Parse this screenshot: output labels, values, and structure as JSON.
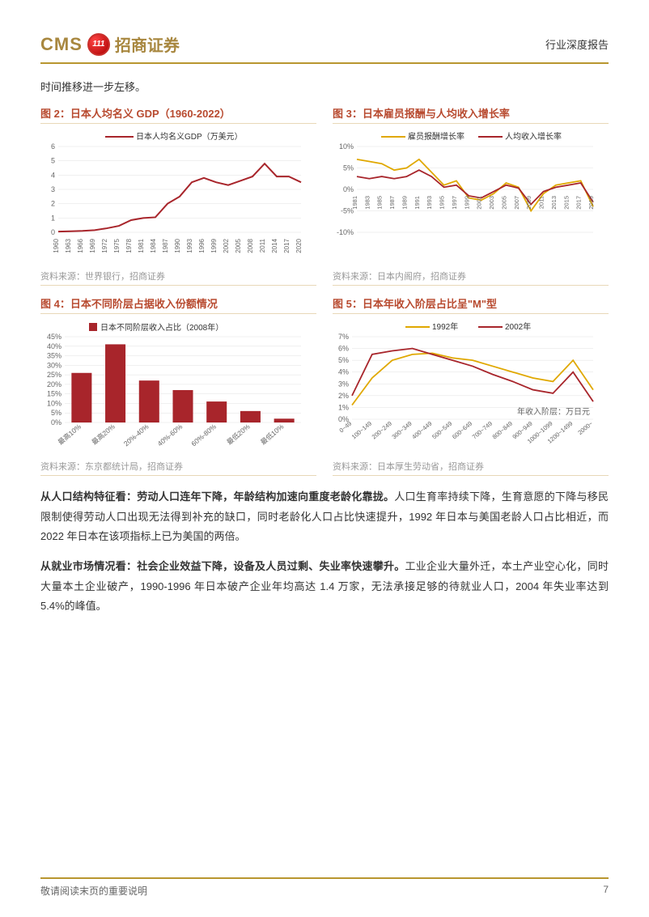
{
  "header": {
    "logo_cms": "CMS",
    "logo_badge": "111",
    "logo_cn": "招商证券",
    "report_type": "行业深度报告"
  },
  "intro": "时间推移进一步左移。",
  "chart2": {
    "title": "图 2：日本人均名义 GDP（1960-2022）",
    "legend": "日本人均名义GDP（万美元）",
    "source": "资料来源：世界银行，招商证券",
    "color": "#a8252b",
    "ylim": [
      0,
      6
    ],
    "ytick": 1,
    "xticks": [
      "1960",
      "1963",
      "1966",
      "1969",
      "1972",
      "1975",
      "1978",
      "1981",
      "1984",
      "1987",
      "1990",
      "1993",
      "1996",
      "1999",
      "2002",
      "2005",
      "2008",
      "2011",
      "2014",
      "2017",
      "2020"
    ],
    "values": [
      0.05,
      0.07,
      0.1,
      0.15,
      0.28,
      0.45,
      0.85,
      1.0,
      1.05,
      2.0,
      2.5,
      3.5,
      3.8,
      3.5,
      3.3,
      3.6,
      3.9,
      4.8,
      3.9,
      3.9,
      3.5
    ],
    "grid_color": "#e0e0e0"
  },
  "chart3": {
    "title": "图 3：日本雇员报酬与人均收入增长率",
    "legend1": "雇员报酬增长率",
    "legend2": "人均收入增长率",
    "color1": "#e0a800",
    "color2": "#a8252b",
    "source": "资料来源：日本内阁府，招商证券",
    "ylim": [
      -10,
      10
    ],
    "ytick": 5,
    "xticks": [
      "1981",
      "1983",
      "1985",
      "1987",
      "1989",
      "1991",
      "1993",
      "1995",
      "1997",
      "1999",
      "2001",
      "2003",
      "2005",
      "2007",
      "2009",
      "2011",
      "2013",
      "2015",
      "2017",
      "2019"
    ],
    "values1": [
      7,
      6.5,
      6,
      4.5,
      5,
      7,
      4,
      1,
      2,
      -2,
      -2.5,
      -1,
      1.5,
      0.5,
      -5,
      -1,
      1,
      1.5,
      2,
      -4
    ],
    "values2": [
      3,
      2.5,
      3,
      2.5,
      3,
      4.5,
      3,
      0.5,
      1,
      -1.5,
      -2,
      -0.5,
      1,
      0.3,
      -3.5,
      -0.5,
      0.5,
      1,
      1.5,
      -3
    ],
    "grid_color": "#e0e0e0"
  },
  "chart4": {
    "title": "图 4：日本不同阶层占据收入份额情况",
    "legend": "日本不同阶层收入占比（2008年）",
    "color": "#a8252b",
    "source": "资料来源：东京都统计局，招商证券",
    "ylim": [
      0,
      45
    ],
    "ytick": 5,
    "yformat": "%",
    "xticks": [
      "最高10%",
      "最高20%",
      "20%-40%",
      "40%-60%",
      "60%-80%",
      "最低20%",
      "最低10%"
    ],
    "values": [
      26,
      41,
      22,
      17,
      11,
      6,
      2
    ],
    "grid_color": "#e0e0e0"
  },
  "chart5": {
    "title": "图 5：日本年收入阶层占比呈\"M\"型",
    "legend1": "1992年",
    "legend2": "2002年",
    "note": "年收入阶层：万日元",
    "color1": "#e0a800",
    "color2": "#a8252b",
    "source": "资料来源：日本厚生劳动省，招商证券",
    "ylim": [
      0,
      7
    ],
    "ytick": 1,
    "yformat": "%",
    "xticks": [
      "0~49",
      "100~149",
      "200~249",
      "300~349",
      "400~449",
      "500~549",
      "600~649",
      "700~749",
      "800~849",
      "900~949",
      "1000~1099",
      "1200~1499",
      "2000~"
    ],
    "values1": [
      1.2,
      3.5,
      5,
      5.5,
      5.6,
      5.2,
      5,
      4.5,
      4,
      3.5,
      3.2,
      5,
      2.5
    ],
    "values2": [
      2,
      5.5,
      5.8,
      6,
      5.5,
      5,
      4.5,
      3.8,
      3.2,
      2.5,
      2.2,
      4,
      1.5
    ],
    "grid_color": "#e0e0e0"
  },
  "para1": {
    "bold": "从人口结构特征看：劳动人口连年下降，年龄结构加速向重度老龄化靠拢。",
    "text": "人口生育率持续下降，生育意愿的下降与移民限制使得劳动人口出现无法得到补充的缺口，同时老龄化人口占比快速提升，1992 年日本与美国老龄人口占比相近，而 2022 年日本在该项指标上已为美国的两倍。"
  },
  "para2": {
    "bold": "从就业市场情况看：社会企业效益下降，设备及人员过剩、失业率快速攀升。",
    "text": "工业企业大量外迁，本土产业空心化，同时大量本土企业破产，1990-1996 年日本破产企业年均高达 1.4 万家，无法承接足够的待就业人口，2004 年失业率达到 5.4%的峰值。"
  },
  "footer": {
    "disclaimer": "敬请阅读末页的重要说明",
    "page": "7"
  }
}
